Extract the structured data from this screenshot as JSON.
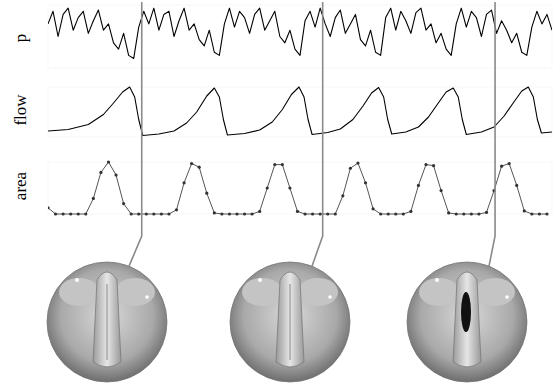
{
  "chart_data": [
    {
      "type": "line",
      "ylabel": "p",
      "color": "#000000",
      "line_style": "solid",
      "tick_labels": false,
      "xlim": [
        0,
        100
      ],
      "ylim": [
        0,
        1
      ],
      "x": [
        0,
        1,
        2,
        3,
        4,
        5,
        6,
        7,
        8,
        9,
        10,
        11,
        12,
        13,
        14,
        15,
        16,
        17,
        18,
        19,
        20,
        21,
        22,
        23,
        24,
        25,
        26,
        27,
        28,
        29,
        30,
        31,
        32,
        33,
        34,
        35,
        36,
        37,
        38,
        39,
        40,
        41,
        42,
        43,
        44,
        45,
        46,
        47,
        48,
        49,
        50,
        51,
        52,
        53,
        54,
        55,
        56,
        57,
        58,
        59,
        60,
        61,
        62,
        63,
        64,
        65,
        66,
        67,
        68,
        69,
        70,
        71,
        72,
        73,
        74,
        75,
        76,
        77,
        78,
        79,
        80,
        81,
        82,
        83,
        84,
        85,
        86,
        87,
        88,
        89,
        90,
        91,
        92,
        93,
        94,
        95,
        96,
        97,
        98,
        99,
        100
      ],
      "values": [
        0.7,
        0.9,
        0.5,
        0.85,
        0.95,
        0.6,
        0.8,
        0.9,
        0.55,
        0.75,
        0.92,
        0.6,
        0.7,
        0.4,
        0.3,
        0.55,
        0.2,
        0.15,
        0.65,
        0.9,
        0.7,
        0.95,
        0.6,
        0.85,
        0.9,
        0.5,
        0.75,
        0.95,
        0.6,
        0.7,
        0.45,
        0.35,
        0.6,
        0.25,
        0.2,
        0.7,
        0.95,
        0.65,
        0.9,
        0.8,
        0.55,
        0.85,
        0.95,
        0.6,
        0.75,
        0.9,
        0.5,
        0.4,
        0.6,
        0.3,
        0.2,
        0.75,
        0.9,
        0.65,
        0.95,
        0.7,
        0.5,
        0.8,
        0.92,
        0.55,
        0.7,
        0.85,
        0.45,
        0.35,
        0.6,
        0.25,
        0.2,
        0.8,
        0.95,
        0.6,
        0.9,
        0.75,
        0.55,
        0.88,
        0.95,
        0.6,
        0.7,
        0.4,
        0.55,
        0.3,
        0.2,
        0.7,
        0.95,
        0.65,
        0.9,
        0.8,
        0.5,
        0.85,
        0.92,
        0.55,
        0.75,
        0.6,
        0.4,
        0.55,
        0.25,
        0.2,
        0.65,
        0.9,
        0.7,
        0.85,
        0.6
      ]
    },
    {
      "type": "line",
      "ylabel": "flow",
      "color": "#000000",
      "line_style": "solid",
      "tick_labels": false,
      "xlim": [
        0,
        100
      ],
      "ylim": [
        0,
        1
      ],
      "x": [
        0,
        4,
        8,
        11,
        13,
        14.8,
        16.2,
        17.2,
        18,
        18.8,
        22,
        25,
        27.5,
        29.5,
        31.5,
        33,
        34,
        34.8,
        35.6,
        39,
        42,
        44.5,
        46.5,
        48.3,
        49.8,
        50.8,
        51.6,
        52.4,
        55.5,
        58,
        60.5,
        62.5,
        64.2,
        65.6,
        66.6,
        67.4,
        68.2,
        71,
        73.5,
        75.5,
        77.3,
        79,
        80.4,
        81.4,
        82.2,
        83,
        86,
        88.5,
        90.5,
        92.3,
        94,
        95.3,
        96.3,
        97.1,
        97.9,
        100
      ],
      "values": [
        0.12,
        0.15,
        0.25,
        0.45,
        0.68,
        0.9,
        1.0,
        0.8,
        0.35,
        0.03,
        0.06,
        0.12,
        0.28,
        0.5,
        0.82,
        0.98,
        0.8,
        0.35,
        0.04,
        0.07,
        0.14,
        0.3,
        0.55,
        0.85,
        1.0,
        0.8,
        0.35,
        0.05,
        0.09,
        0.16,
        0.35,
        0.62,
        0.88,
        0.99,
        0.8,
        0.35,
        0.06,
        0.1,
        0.2,
        0.4,
        0.66,
        0.9,
        0.98,
        0.8,
        0.35,
        0.05,
        0.1,
        0.2,
        0.42,
        0.68,
        0.92,
        1.0,
        0.8,
        0.35,
        0.08,
        0.1
      ]
    },
    {
      "type": "line",
      "ylabel": "area",
      "color": "#555555",
      "line_style": "solid",
      "marker": "circle",
      "tick_labels": false,
      "xlim": [
        0,
        100
      ],
      "ylim": [
        0,
        1
      ],
      "x": [
        0,
        1.5,
        3,
        4.5,
        6,
        7.5,
        9,
        10.5,
        12,
        13.5,
        15,
        16.5,
        18,
        19.5,
        21,
        22.5,
        24,
        25.5,
        27,
        28.5,
        30,
        31.5,
        33,
        34.5,
        36,
        37.5,
        39,
        40.5,
        42,
        43.5,
        45,
        46.5,
        48,
        49.5,
        51,
        52.5,
        54,
        55.5,
        57,
        58.5,
        60,
        61.5,
        63,
        64.5,
        66,
        67.5,
        69,
        70.5,
        72,
        73.5,
        75,
        76.5,
        78,
        79.5,
        81,
        82.5,
        84,
        85.5,
        87,
        88.5,
        90,
        91.5,
        93,
        94.5,
        96,
        97.5,
        99
      ],
      "values": [
        0.12,
        0,
        0,
        0,
        0,
        0,
        0.3,
        0.8,
        1.0,
        0.75,
        0.2,
        0,
        0,
        0,
        0,
        0,
        0,
        0.08,
        0.6,
        0.97,
        0.9,
        0.4,
        0.02,
        0,
        0,
        0,
        0,
        0,
        0.05,
        0.5,
        0.95,
        0.95,
        0.5,
        0.05,
        0,
        0,
        0,
        0,
        0,
        0.35,
        0.88,
        0.98,
        0.6,
        0.1,
        0,
        0,
        0,
        0,
        0.05,
        0.55,
        0.95,
        0.93,
        0.45,
        0.02,
        0,
        0,
        0,
        0,
        0.03,
        0.45,
        0.92,
        0.97,
        0.55,
        0.06,
        0,
        0,
        0
      ]
    }
  ],
  "snapshots": [
    18.6,
    54.5,
    88.7
  ]
}
